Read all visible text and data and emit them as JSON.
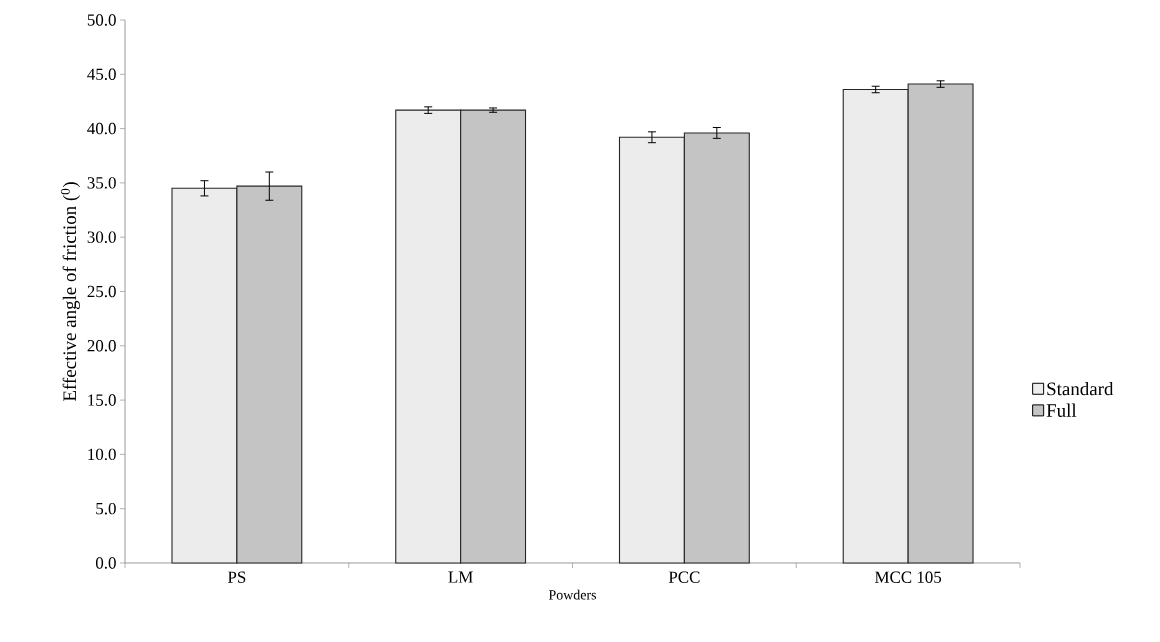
{
  "chart_data": {
    "type": "bar",
    "xlabel": "Powders",
    "ylabel": "Effective angle of friction ($^{0}$)",
    "categories": [
      "PS",
      "LM",
      "PCC",
      "MCC 105"
    ],
    "series": [
      {
        "name": "Standard",
        "color": "#ececec",
        "values": [
          34.5,
          41.7,
          39.2,
          43.6
        ],
        "errors": [
          0.7,
          0.3,
          0.5,
          0.3
        ]
      },
      {
        "name": "Full",
        "color": "#c4c4c4",
        "values": [
          34.7,
          41.7,
          39.6,
          44.1
        ],
        "errors": [
          1.3,
          0.2,
          0.5,
          0.3
        ]
      }
    ],
    "ylim": [
      0,
      50
    ],
    "yticks": [
      {
        "value": 0,
        "label": "0.0"
      },
      {
        "value": 5,
        "label": "5.0"
      },
      {
        "value": 10,
        "label": "10.0"
      },
      {
        "value": 15,
        "label": "15.0"
      },
      {
        "value": 20,
        "label": "20.0"
      },
      {
        "value": 25,
        "label": "25.0"
      },
      {
        "value": 30,
        "label": "30.0"
      },
      {
        "value": 35,
        "label": "35.0"
      },
      {
        "value": 40,
        "label": "40.0"
      },
      {
        "value": 45,
        "label": "45.0"
      },
      {
        "value": 50,
        "label": "50.0"
      }
    ],
    "grid": false,
    "legend": "right"
  }
}
